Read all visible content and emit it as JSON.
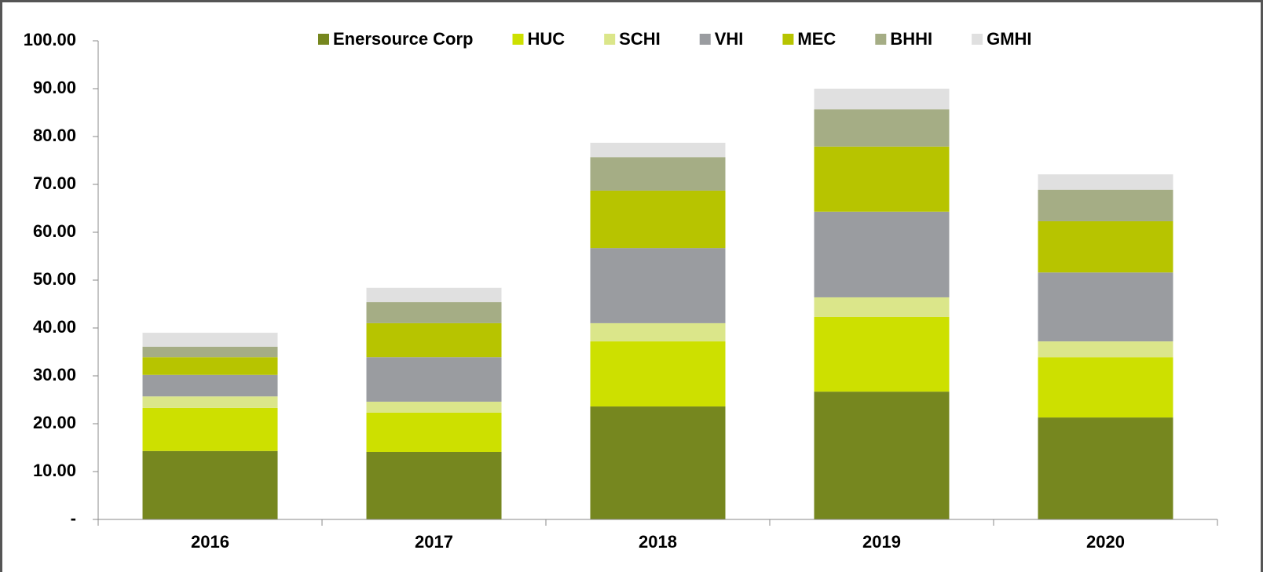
{
  "chart_data": {
    "type": "stacked_bar",
    "categories": [
      "2016",
      "2017",
      "2018",
      "2019",
      "2020"
    ],
    "series": [
      {
        "name": "Enersource Corp",
        "color": "#76871f",
        "values": [
          14.3,
          14.1,
          23.6,
          26.7,
          21.3
        ]
      },
      {
        "name": "HUC",
        "color": "#cde000",
        "values": [
          9.0,
          8.2,
          13.6,
          15.6,
          12.6
        ]
      },
      {
        "name": "SCHI",
        "color": "#dbe68a",
        "values": [
          2.4,
          2.3,
          3.8,
          4.1,
          3.3
        ]
      },
      {
        "name": "VHI",
        "color": "#9a9ca0",
        "values": [
          4.5,
          9.3,
          15.7,
          17.9,
          14.4
        ]
      },
      {
        "name": "MEC",
        "color": "#b7c400",
        "values": [
          3.7,
          7.1,
          12.0,
          13.6,
          10.7
        ]
      },
      {
        "name": "BHHI",
        "color": "#a5ad85",
        "values": [
          2.2,
          4.4,
          7.0,
          7.8,
          6.6
        ]
      },
      {
        "name": "GMHI",
        "color": "#e0e0e0",
        "values": [
          2.9,
          3.0,
          3.0,
          4.3,
          3.2
        ]
      }
    ],
    "ylim": [
      0,
      100
    ],
    "yticks": [
      {
        "value": 0,
        "label": "-"
      },
      {
        "value": 10,
        "label": "10.00"
      },
      {
        "value": 20,
        "label": "20.00"
      },
      {
        "value": 30,
        "label": "30.00"
      },
      {
        "value": 40,
        "label": "40.00"
      },
      {
        "value": 50,
        "label": "50.00"
      },
      {
        "value": 60,
        "label": "60.00"
      },
      {
        "value": 70,
        "label": "70.00"
      },
      {
        "value": 80,
        "label": "80.00"
      },
      {
        "value": 90,
        "label": "90.00"
      },
      {
        "value": 100,
        "label": "100.00"
      }
    ],
    "legend": "top",
    "grid": false
  }
}
